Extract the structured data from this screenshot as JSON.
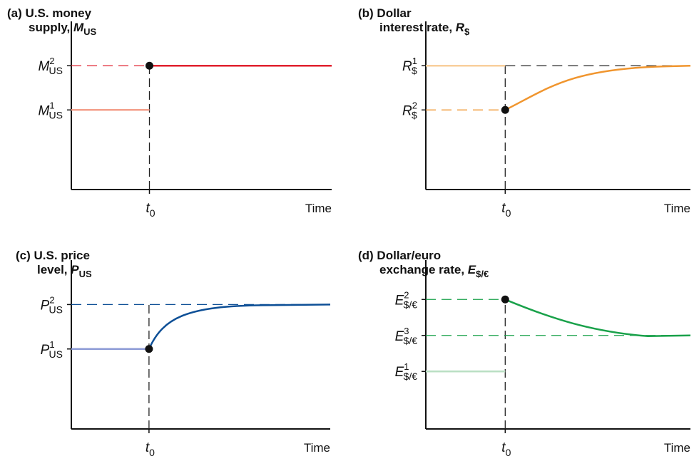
{
  "chart_data": [
    {
      "type": "line",
      "panel": "a",
      "title_line1": "(a) U.S. money",
      "title_line2_prefix": "supply, ",
      "title_var": "M",
      "title_var_sub": "US",
      "xlabel": "Time",
      "x_event": {
        "label": "t",
        "sub": "0"
      },
      "y_levels": [
        {
          "var": "M",
          "sub": "US",
          "sup": "2",
          "value": 2
        },
        {
          "var": "M",
          "sub": "US",
          "sup": "1",
          "value": 1
        }
      ],
      "ylim": [
        -0.8,
        2.6
      ],
      "xlim": [
        0,
        1
      ],
      "event_x": 0.3,
      "shape": "step",
      "start_value": 1,
      "end_value": 2,
      "colors": {
        "before": "#f4a08c",
        "after": "#e0202e",
        "guide": "#e0202e"
      }
    },
    {
      "type": "line",
      "panel": "b",
      "title_line1": "(b) Dollar",
      "title_line2_prefix": "interest rate, ",
      "title_var": "R",
      "title_var_sub": "$",
      "xlabel": "Time",
      "x_event": {
        "label": "t",
        "sub": "0"
      },
      "y_levels": [
        {
          "var": "R",
          "sub": "$",
          "sup": "1",
          "value": 2
        },
        {
          "var": "R",
          "sub": "$",
          "sup": "2",
          "value": 1
        }
      ],
      "ylim": [
        -0.8,
        2.6
      ],
      "xlim": [
        0,
        1
      ],
      "event_x": 0.3,
      "shape": "converge",
      "start_value": 2,
      "jump_value": 1,
      "end_value": 2,
      "colors": {
        "before": "#f9cf9c",
        "after": "#f0952e",
        "guide": "#f0952e",
        "final_guide": "#222222"
      }
    },
    {
      "type": "line",
      "panel": "c",
      "title_line1": "(c) U.S. price",
      "title_line2_prefix": "level, ",
      "title_var": "P",
      "title_var_sub": "US",
      "xlabel": "Time",
      "x_event": {
        "label": "t",
        "sub": "0"
      },
      "y_levels": [
        {
          "var": "P",
          "sub": "US",
          "sup": "2",
          "value": 2
        },
        {
          "var": "P",
          "sub": "US",
          "sup": "1",
          "value": 1
        }
      ],
      "ylim": [
        -0.8,
        2.6
      ],
      "xlim": [
        0,
        1
      ],
      "event_x": 0.3,
      "shape": "rise",
      "start_value": 1,
      "end_value": 2,
      "colors": {
        "before": "#8d9bd6",
        "after": "#0d4f96",
        "guide": "#0d4f96"
      }
    },
    {
      "type": "line",
      "panel": "d",
      "title_line1": "(d) Dollar/euro",
      "title_line2_prefix": "exchange rate, ",
      "title_var": "E",
      "title_var_sub": "$/€",
      "xlabel": "Time",
      "x_event": {
        "label": "t",
        "sub": "0"
      },
      "y_levels": [
        {
          "var": "E",
          "sub": "$/€",
          "sup": "2",
          "value": 3
        },
        {
          "var": "E",
          "sub": "$/€",
          "sup": "3",
          "value": 2
        },
        {
          "var": "E",
          "sub": "$/€",
          "sup": "1",
          "value": 1
        }
      ],
      "ylim": [
        -0.6,
        3.6
      ],
      "xlim": [
        0,
        1
      ],
      "event_x": 0.3,
      "shape": "overshoot",
      "start_value": 1,
      "jump_value": 3,
      "end_value": 2,
      "colors": {
        "before": "#b9dfc3",
        "after": "#19a14a",
        "guide": "#19a14a"
      }
    }
  ]
}
